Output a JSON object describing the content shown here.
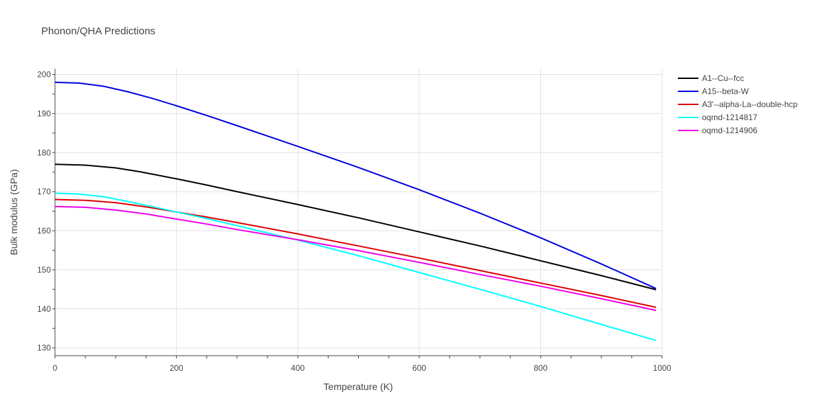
{
  "chart_data": {
    "type": "line",
    "title": "Phonon/QHA Predictions",
    "xlabel": "Temperature (K)",
    "ylabel": "Bulk modulus (GPa)",
    "xlim": [
      0,
      1000
    ],
    "ylim": [
      128,
      201.5
    ],
    "xticks": [
      0,
      200,
      400,
      600,
      800,
      1000
    ],
    "yticks": [
      130,
      140,
      150,
      160,
      170,
      180,
      190,
      200
    ],
    "grid": true,
    "legend_position": "top-right",
    "series": [
      {
        "name": "A1--Cu--fcc",
        "color": "#000000",
        "x": [
          0,
          50,
          100,
          140,
          200,
          250,
          300,
          400,
          500,
          600,
          700,
          800,
          900,
          990
        ],
        "y": [
          177.0,
          176.8,
          176.1,
          175.1,
          173.3,
          171.7,
          170.0,
          166.7,
          163.3,
          159.7,
          156.1,
          152.3,
          148.5,
          144.9
        ]
      },
      {
        "name": "A15--beta-W",
        "color": "#0000dd",
        "x": [
          0,
          40,
          80,
          120,
          160,
          200,
          250,
          300,
          400,
          500,
          600,
          700,
          800,
          900,
          990
        ],
        "y": [
          198.0,
          197.8,
          197.0,
          195.6,
          193.9,
          192.0,
          189.5,
          186.9,
          181.6,
          176.2,
          170.5,
          164.5,
          158.2,
          151.5,
          145.2
        ]
      },
      {
        "name": "A3'--alpha-La--double-hcp",
        "color": "#dd0000",
        "x": [
          0,
          50,
          100,
          150,
          200,
          250,
          300,
          400,
          500,
          600,
          700,
          800,
          900,
          990
        ],
        "y": [
          168.0,
          167.8,
          167.2,
          166.1,
          164.8,
          163.5,
          162.1,
          159.2,
          156.1,
          153.0,
          149.8,
          146.6,
          143.4,
          140.4
        ]
      },
      {
        "name": "oqmd-1214817",
        "color": "#00ffff",
        "x": [
          0,
          40,
          80,
          120,
          160,
          200,
          250,
          300,
          400,
          500,
          600,
          700,
          800,
          900,
          990
        ],
        "y": [
          169.6,
          169.4,
          168.7,
          167.5,
          166.2,
          164.8,
          163.1,
          161.3,
          157.6,
          153.6,
          149.3,
          145.0,
          140.6,
          136.0,
          131.9
        ]
      },
      {
        "name": "oqmd-1214906",
        "color": "#ee00ee",
        "x": [
          0,
          50,
          100,
          150,
          200,
          250,
          300,
          400,
          500,
          600,
          700,
          800,
          900,
          990
        ],
        "y": [
          166.2,
          166.0,
          165.3,
          164.3,
          163.0,
          161.7,
          160.3,
          157.7,
          154.9,
          151.9,
          148.8,
          145.8,
          142.6,
          139.6
        ]
      }
    ]
  }
}
